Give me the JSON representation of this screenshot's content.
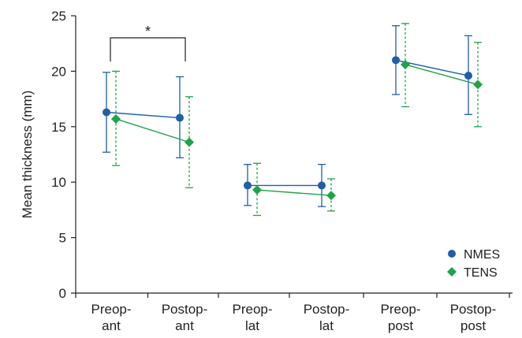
{
  "chart_data": {
    "type": "scatter",
    "ylabel": "Mean thickness (mm)",
    "xlabel": "",
    "ylim": [
      0,
      25
    ],
    "yticks": [
      0,
      5,
      10,
      15,
      20,
      25
    ],
    "categories": [
      [
        "Preop-",
        "ant"
      ],
      [
        "Postop-",
        "ant"
      ],
      [
        "Preop-",
        "lat"
      ],
      [
        "Postop-",
        "lat"
      ],
      [
        "Preop-",
        "post"
      ],
      [
        "Postop-",
        "post"
      ]
    ],
    "connect_pairs": [
      [
        0,
        1
      ],
      [
        2,
        3
      ],
      [
        4,
        5
      ]
    ],
    "legend_position": "bottom-right",
    "grid": false,
    "series": [
      {
        "name": "NMES",
        "color": "#1f5fa8",
        "marker": "circle",
        "error_style": "solid",
        "values": [
          16.3,
          15.8,
          9.7,
          9.7,
          21.0,
          19.6
        ],
        "error_low": [
          12.7,
          12.2,
          7.9,
          7.8,
          17.9,
          16.1
        ],
        "error_high": [
          19.9,
          19.5,
          11.6,
          11.6,
          24.1,
          23.2
        ]
      },
      {
        "name": "TENS",
        "color": "#1fa34a",
        "marker": "diamond",
        "error_style": "dashed",
        "values": [
          15.7,
          13.6,
          9.3,
          8.8,
          20.6,
          18.8
        ],
        "error_low": [
          11.5,
          9.5,
          7.0,
          7.4,
          16.8,
          15.0
        ],
        "error_high": [
          20.0,
          17.7,
          11.7,
          10.3,
          24.3,
          22.6
        ]
      }
    ],
    "annotations": [
      {
        "text": "*",
        "between": [
          0,
          1
        ]
      }
    ]
  }
}
